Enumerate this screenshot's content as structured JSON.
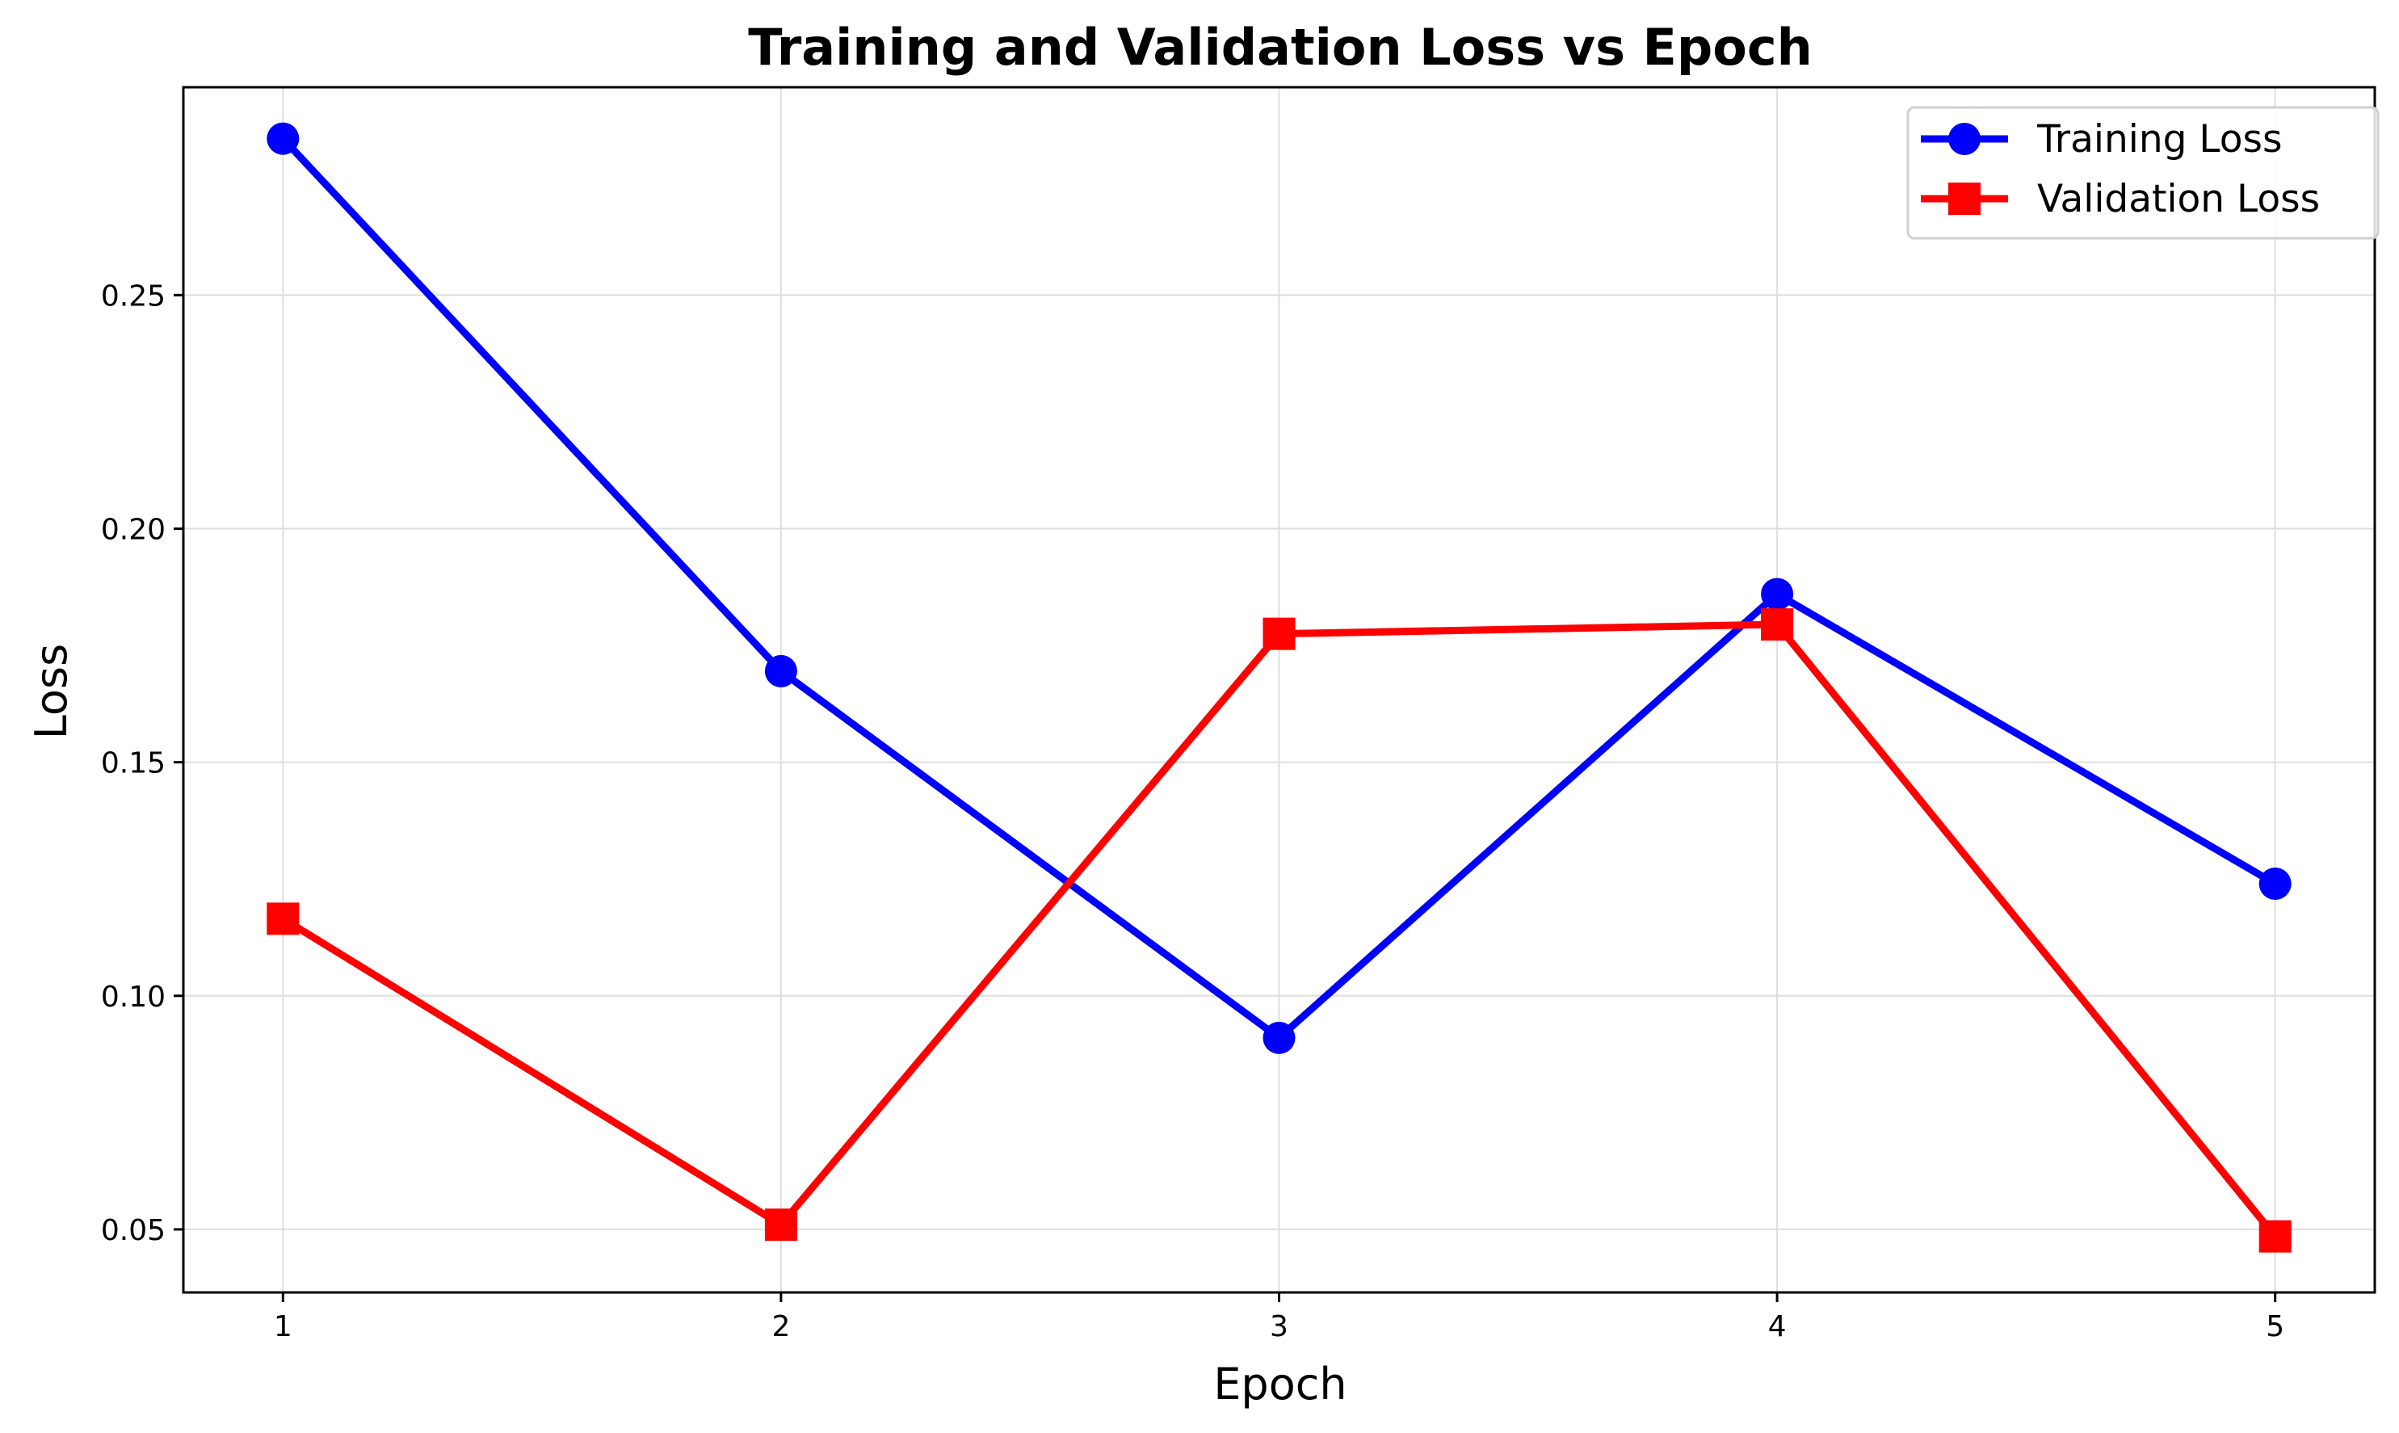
{
  "chart_data": {
    "type": "line",
    "title": "Training and Validation Loss vs Epoch",
    "xlabel": "Epoch",
    "ylabel": "Loss",
    "x": [
      1,
      2,
      3,
      4,
      5
    ],
    "xticks": [
      "1",
      "2",
      "3",
      "4",
      "5"
    ],
    "xlim": [
      0.8,
      5.2
    ],
    "yticks": [
      "0.05",
      "0.10",
      "0.15",
      "0.20",
      "0.25"
    ],
    "ytick_values": [
      0.05,
      0.1,
      0.15,
      0.2,
      0.25
    ],
    "ylim": [
      0.0365,
      0.2945
    ],
    "grid": true,
    "legend_position": "top-right",
    "series": [
      {
        "name": "Training Loss",
        "values": [
          0.2835,
          0.1695,
          0.091,
          0.186,
          0.124
        ],
        "color": "#0000ff",
        "marker": "circle"
      },
      {
        "name": "Validation Loss",
        "values": [
          0.1165,
          0.051,
          0.1775,
          0.1795,
          0.0485
        ],
        "color": "#ff0000",
        "marker": "square"
      }
    ]
  }
}
